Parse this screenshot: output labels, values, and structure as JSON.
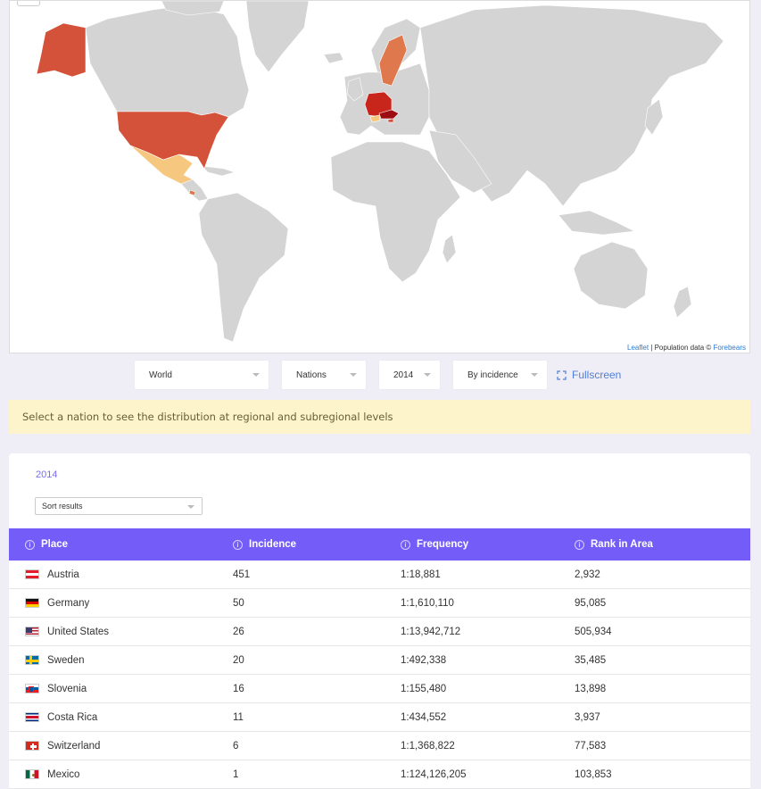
{
  "map": {
    "attribution_leaflet": "Leaflet",
    "attribution_separator": " | Population data © ",
    "attribution_source": "Forebears",
    "colors": {
      "land": "#d4d4d4",
      "border": "#ffffff",
      "high": "#c9261b",
      "mid_high": "#d4513a",
      "mid": "#e0784d",
      "low": "#f6c87f"
    }
  },
  "controls": {
    "region_select": "World",
    "level_select": "Nations",
    "year_select": "2014",
    "sort_by_select": "By incidence",
    "fullscreen_label": "Fullscreen"
  },
  "notice": {
    "text": "Select a nation to see the distribution at regional and subregional levels"
  },
  "results": {
    "year": "2014",
    "sort_placeholder": "Sort results",
    "columns": {
      "place": "Place",
      "incidence": "Incidence",
      "frequency": "Frequency",
      "rank": "Rank in Area"
    },
    "rows": [
      {
        "place": "Austria",
        "incidence": "451",
        "frequency": "1:18,881",
        "rank": "2,932",
        "flag": "austria"
      },
      {
        "place": "Germany",
        "incidence": "50",
        "frequency": "1:1,610,110",
        "rank": "95,085",
        "flag": "germany"
      },
      {
        "place": "United States",
        "incidence": "26",
        "frequency": "1:13,942,712",
        "rank": "505,934",
        "flag": "usa"
      },
      {
        "place": "Sweden",
        "incidence": "20",
        "frequency": "1:492,338",
        "rank": "35,485",
        "flag": "sweden"
      },
      {
        "place": "Slovenia",
        "incidence": "16",
        "frequency": "1:155,480",
        "rank": "13,898",
        "flag": "slovenia"
      },
      {
        "place": "Costa Rica",
        "incidence": "11",
        "frequency": "1:434,552",
        "rank": "3,937",
        "flag": "costa-rica"
      },
      {
        "place": "Switzerland",
        "incidence": "6",
        "frequency": "1:1,368,822",
        "rank": "77,583",
        "flag": "switzerland"
      },
      {
        "place": "Mexico",
        "incidence": "1",
        "frequency": "1:124,126,205",
        "rank": "103,853",
        "flag": "mexico"
      }
    ]
  }
}
